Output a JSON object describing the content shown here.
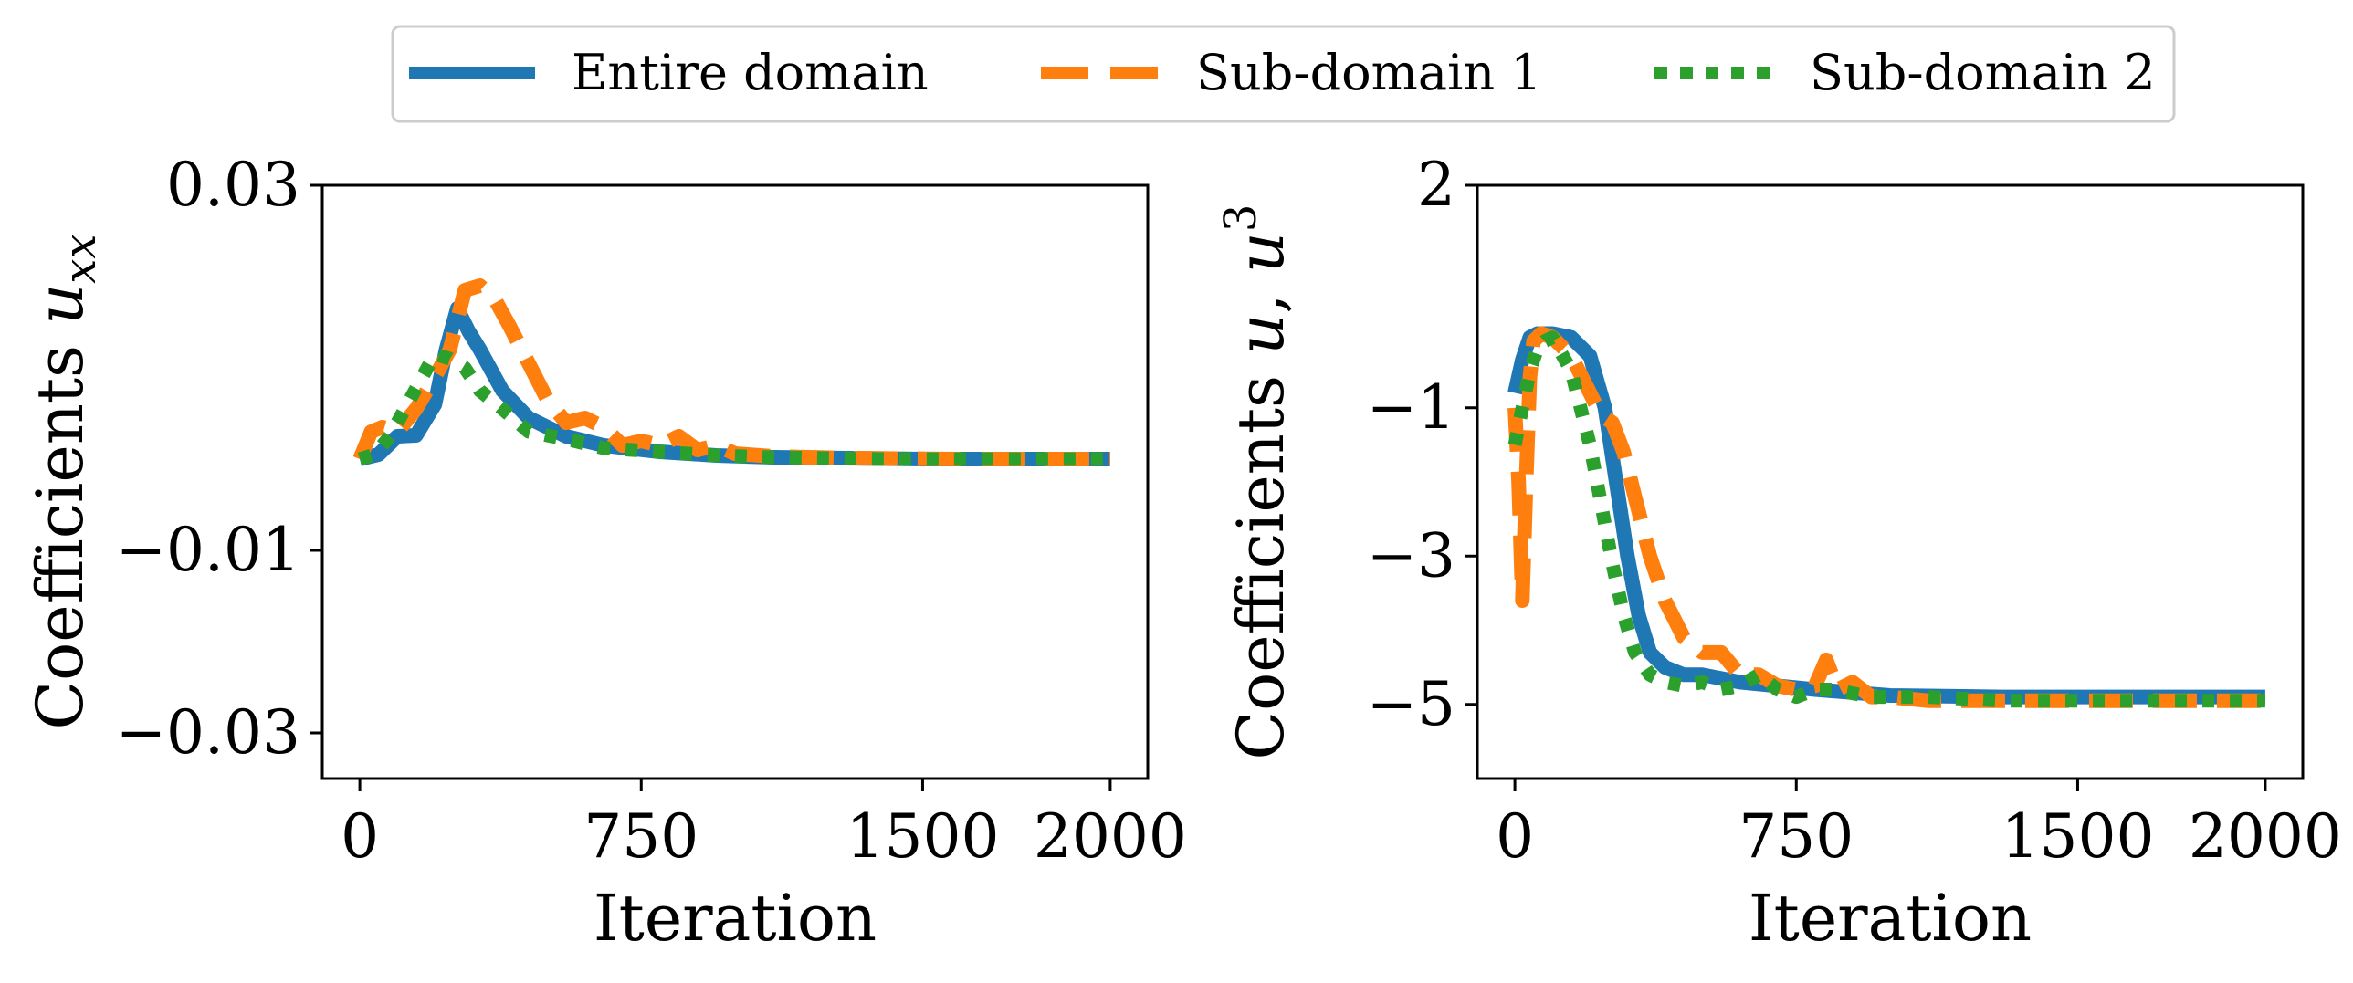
{
  "legend": {
    "entries": [
      {
        "label": "Entire domain",
        "color": "#1f77b4",
        "style": "solid"
      },
      {
        "label": "Sub-domain 1",
        "color": "#ff7f0e",
        "style": "dashed"
      },
      {
        "label": "Sub-domain 2",
        "color": "#2ca02c",
        "style": "dotted"
      }
    ],
    "placement": "top-center"
  },
  "chart_data": [
    {
      "type": "line",
      "title": "",
      "xlabel": "Iteration",
      "ylabel": "Coefficients u_xx",
      "ylabel_parts": {
        "prefix": "Coefficients ",
        "var": "u",
        "sub": "xx"
      },
      "xlim": [
        -100,
        2100
      ],
      "ylim": [
        -0.035,
        0.03
      ],
      "xticks": [
        0,
        750,
        1500,
        2000
      ],
      "xtick_labels": [
        "0",
        "750",
        "1500",
        "2000"
      ],
      "yticks": [
        0.03,
        -0.01,
        -0.03
      ],
      "ytick_labels": [
        "0.03",
        "−0.01",
        "−0.03"
      ],
      "grid": false,
      "series": [
        {
          "name": "Entire domain",
          "color": "#1f77b4",
          "style": "solid",
          "x": [
            0,
            50,
            100,
            150,
            200,
            230,
            260,
            290,
            320,
            380,
            450,
            550,
            650,
            800,
            950,
            1100,
            1300,
            1500,
            1700,
            2000
          ],
          "y": [
            0.0,
            0.0005,
            0.0025,
            0.0026,
            0.006,
            0.012,
            0.0165,
            0.014,
            0.012,
            0.0075,
            0.0045,
            0.0025,
            0.0015,
            0.0008,
            0.0004,
            0.0002,
            0.0001,
            0.0,
            0.0,
            0.0
          ]
        },
        {
          "name": "Sub-domain 1",
          "color": "#ff7f0e",
          "style": "dashed",
          "x": [
            0,
            30,
            60,
            100,
            150,
            200,
            240,
            280,
            320,
            360,
            400,
            450,
            500,
            550,
            600,
            650,
            700,
            750,
            800,
            850,
            900,
            950,
            1000,
            1100,
            1300,
            1600,
            2000
          ],
          "y": [
            0.0,
            0.003,
            0.0035,
            0.003,
            0.0055,
            0.009,
            0.012,
            0.0185,
            0.019,
            0.0175,
            0.0145,
            0.0105,
            0.0065,
            0.004,
            0.0045,
            0.0035,
            0.0015,
            0.002,
            0.0015,
            0.0025,
            0.001,
            0.0015,
            0.0006,
            0.0003,
            0.0001,
            0.0,
            0.0
          ]
        },
        {
          "name": "Sub-domain 2",
          "color": "#2ca02c",
          "style": "dotted",
          "x": [
            0,
            40,
            80,
            120,
            160,
            200,
            240,
            280,
            320,
            380,
            450,
            550,
            650,
            800,
            950,
            1100,
            1400,
            1700,
            2000
          ],
          "y": [
            0.0,
            0.0005,
            0.0025,
            0.0055,
            0.0085,
            0.0115,
            0.011,
            0.01,
            0.0075,
            0.0055,
            0.003,
            0.0022,
            0.0012,
            0.0008,
            0.0004,
            0.0002,
            0.0,
            0.0,
            0.0
          ]
        }
      ]
    },
    {
      "type": "line",
      "title": "",
      "xlabel": "Iteration",
      "ylabel": "Coefficients u, u^3",
      "ylabel_parts": {
        "prefix": "Coefficients ",
        "var": "u",
        "sep": ", ",
        "var2": "u",
        "sup": "3"
      },
      "xlim": [
        -100,
        2100
      ],
      "ylim": [
        -6,
        2
      ],
      "xticks": [
        0,
        750,
        1500,
        2000
      ],
      "xtick_labels": [
        "0",
        "750",
        "1500",
        "2000"
      ],
      "yticks": [
        2,
        -1,
        -3,
        -5
      ],
      "ytick_labels": [
        "2",
        "−1",
        "−3",
        "−5"
      ],
      "grid": false,
      "series": [
        {
          "name": "Entire domain",
          "color": "#1f77b4",
          "style": "solid",
          "x": [
            0,
            20,
            40,
            60,
            80,
            100,
            150,
            200,
            240,
            270,
            300,
            330,
            360,
            400,
            450,
            500,
            550,
            600,
            700,
            800,
            1000,
            1300,
            1600,
            2000
          ],
          "y": [
            -0.8,
            -0.35,
            -0.05,
            0.0,
            0.0,
            0.0,
            -0.05,
            -0.3,
            -1.0,
            -2.0,
            -3.0,
            -3.8,
            -4.3,
            -4.5,
            -4.6,
            -4.6,
            -4.65,
            -4.7,
            -4.75,
            -4.8,
            -4.88,
            -4.9,
            -4.9,
            -4.9
          ]
        },
        {
          "name": "Sub-domain 1",
          "color": "#ff7f0e",
          "style": "dashed",
          "x": [
            0,
            10,
            20,
            30,
            40,
            50,
            70,
            100,
            150,
            200,
            230,
            260,
            290,
            320,
            360,
            400,
            450,
            500,
            550,
            600,
            650,
            700,
            750,
            800,
            830,
            860,
            900,
            950,
            1000,
            1100,
            1300,
            1600,
            2000
          ],
          "y": [
            -1.0,
            -2.0,
            -3.6,
            -2.0,
            -0.6,
            -0.1,
            0.0,
            -0.05,
            -0.3,
            -0.8,
            -1.1,
            -1.2,
            -1.6,
            -2.2,
            -3.0,
            -3.6,
            -4.1,
            -4.3,
            -4.3,
            -4.6,
            -4.6,
            -4.75,
            -4.8,
            -4.75,
            -4.4,
            -4.8,
            -4.7,
            -4.9,
            -4.9,
            -4.95,
            -4.95,
            -4.95,
            -4.95
          ]
        },
        {
          "name": "Sub-domain 2",
          "color": "#2ca02c",
          "style": "dotted",
          "x": [
            0,
            20,
            40,
            60,
            80,
            100,
            150,
            200,
            230,
            260,
            290,
            320,
            360,
            400,
            450,
            500,
            550,
            600,
            650,
            700,
            750,
            800,
            850,
            900,
            950,
            1000,
            1100,
            1300,
            1600,
            2000
          ],
          "y": [
            -1.5,
            -1.0,
            -0.5,
            -0.2,
            -0.1,
            -0.05,
            -0.5,
            -1.5,
            -2.3,
            -3.1,
            -3.8,
            -4.3,
            -4.6,
            -4.7,
            -4.75,
            -4.7,
            -4.8,
            -4.75,
            -4.6,
            -4.8,
            -4.9,
            -4.8,
            -4.8,
            -4.85,
            -4.9,
            -4.9,
            -4.9,
            -4.95,
            -4.95,
            -4.95
          ]
        }
      ]
    }
  ]
}
